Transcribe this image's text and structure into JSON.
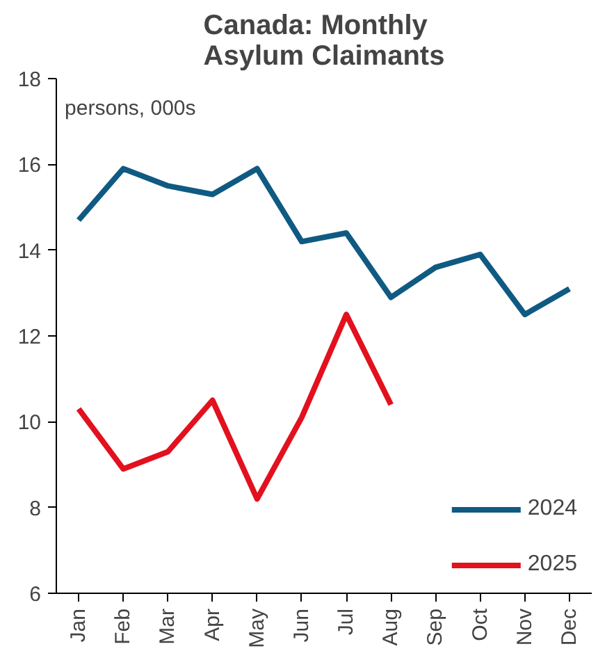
{
  "chart_data": {
    "type": "line",
    "title": "Canada: Monthly\nAsylum Claimants",
    "annotations": [
      "persons, 000s"
    ],
    "categories": [
      "Jan",
      "Feb",
      "Mar",
      "Apr",
      "May",
      "Jun",
      "Jul",
      "Aug",
      "Sep",
      "Oct",
      "Nov",
      "Dec"
    ],
    "series": [
      {
        "name": "2024",
        "color": "#0f5a82",
        "values": [
          14.7,
          15.9,
          15.5,
          15.3,
          15.9,
          14.2,
          14.4,
          12.9,
          13.6,
          13.9,
          12.5,
          13.1
        ]
      },
      {
        "name": "2025",
        "color": "#e3101e",
        "values": [
          10.3,
          8.9,
          9.3,
          10.5,
          8.2,
          10.1,
          12.5,
          10.4,
          null,
          null,
          null,
          null
        ]
      }
    ],
    "ylim": [
      6,
      18
    ],
    "yticks": [
      6,
      8,
      10,
      12,
      14,
      16,
      18
    ],
    "grid": false,
    "legend": "bottom right",
    "line_style": "solid"
  }
}
